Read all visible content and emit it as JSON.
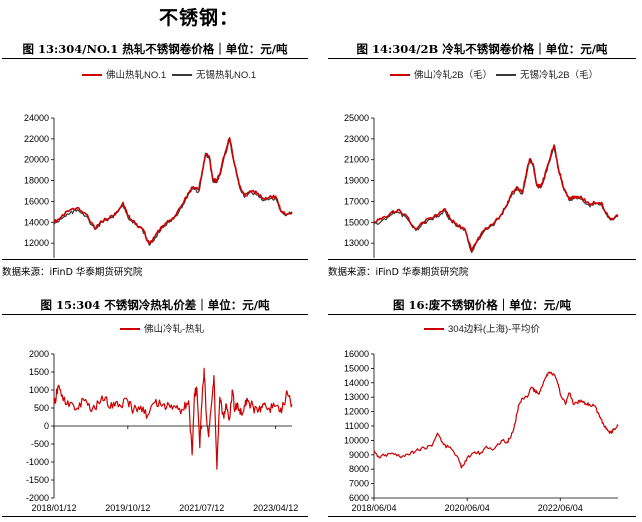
{
  "heading": "不锈钢：",
  "colors": {
    "red": "#cc0000",
    "dark": "#3a3a3a"
  },
  "panels": [
    {
      "title": "图 13:304/NO.1 热轧不锈钢卷价格｜单位：元/吨",
      "source": "数据来源：iFinD  华泰期货研究院",
      "chart_data": {
        "type": "line",
        "title": "图 13:304/NO.1 热轧不锈钢卷价格｜单位：元/吨",
        "x_ticks": [
          "2018/01/12",
          "2019/10/12",
          "2021/07/12",
          "2023/04/12"
        ],
        "x_range": [
          "2018-01-12",
          "2023-08-31"
        ],
        "ylim": [
          10000,
          24000
        ],
        "y_ticks": [
          10000,
          12000,
          14000,
          16000,
          18000,
          20000,
          22000,
          24000
        ],
        "grid": false,
        "legend": "top",
        "series": [
          {
            "name": "佛山热轧NO.1",
            "color": "#cc0000",
            "x": [
              "2018-01-12",
              "2018-03-15",
              "2018-06-01",
              "2018-08-01",
              "2018-10-15",
              "2019-01-01",
              "2019-03-01",
              "2019-05-15",
              "2019-07-01",
              "2019-09-01",
              "2019-10-12",
              "2019-12-15",
              "2020-02-15",
              "2020-04-15",
              "2020-06-01",
              "2020-08-01",
              "2020-10-01",
              "2020-12-01",
              "2021-02-01",
              "2021-03-15",
              "2021-05-01",
              "2021-06-15",
              "2021-07-12",
              "2021-08-15",
              "2021-09-15",
              "2021-10-15",
              "2021-11-15",
              "2021-12-15",
              "2022-01-15",
              "2022-03-10",
              "2022-04-15",
              "2022-06-01",
              "2022-07-15",
              "2022-09-01",
              "2022-11-01",
              "2023-01-01",
              "2023-02-15",
              "2023-04-12",
              "2023-05-20",
              "2023-07-01",
              "2023-08-31"
            ],
            "values": [
              14000,
              14500,
              15200,
              15400,
              14800,
              13400,
              14100,
              14600,
              14900,
              15900,
              14600,
              13900,
              13400,
              11900,
              12600,
              13600,
              14100,
              14700,
              15800,
              16800,
              17400,
              17100,
              18600,
              20600,
              20300,
              18200,
              17900,
              18600,
              20200,
              22100,
              19900,
              17600,
              16500,
              17000,
              16800,
              16200,
              16400,
              16500,
              15300,
              14800,
              15000
            ]
          },
          {
            "name": "无锡热轧NO.1",
            "color": "#3a3a3a",
            "x": [
              "2018-01-12",
              "2018-03-15",
              "2018-06-01",
              "2018-08-01",
              "2018-10-15",
              "2019-01-01",
              "2019-03-01",
              "2019-05-15",
              "2019-07-01",
              "2019-09-01",
              "2019-10-12",
              "2019-12-15",
              "2020-02-15",
              "2020-04-15",
              "2020-06-01",
              "2020-08-01",
              "2020-10-01",
              "2020-12-01",
              "2021-02-01",
              "2021-03-15",
              "2021-05-01",
              "2021-06-15",
              "2021-07-12",
              "2021-08-15",
              "2021-09-15",
              "2021-10-15",
              "2021-11-15",
              "2021-12-15",
              "2022-01-15",
              "2022-03-10",
              "2022-04-15",
              "2022-06-01",
              "2022-07-15",
              "2022-09-01",
              "2022-11-01",
              "2023-01-01",
              "2023-02-15",
              "2023-04-12",
              "2023-05-20",
              "2023-07-01",
              "2023-08-31"
            ],
            "values": [
              13800,
              14300,
              14900,
              15200,
              14600,
              13300,
              14000,
              14400,
              14800,
              15600,
              14500,
              13800,
              13300,
              11800,
              12500,
              13500,
              14000,
              14600,
              15700,
              16600,
              17200,
              16900,
              18400,
              20500,
              20100,
              18000,
              17800,
              18500,
              19900,
              21900,
              19800,
              17500,
              16400,
              16900,
              16600,
              16100,
              16200,
              16300,
              15200,
              14700,
              14900
            ]
          }
        ]
      }
    },
    {
      "title": "图 14:304/2B 冷轧不锈钢卷价格｜单位：元/吨",
      "source": "数据来源：iFinD  华泰期货研究院",
      "chart_data": {
        "type": "line",
        "title": "图 14:304/2B 冷轧不锈钢卷价格｜单位：元/吨",
        "x_ticks": [
          "2018/01/12",
          "2019/10/12",
          "2021/07/12",
          "2023/04/12"
        ],
        "x_range": [
          "2018-01-12",
          "2023-08-31"
        ],
        "ylim": [
          11000,
          25000
        ],
        "y_ticks": [
          11000,
          13000,
          15000,
          17000,
          19000,
          21000,
          23000,
          25000
        ],
        "grid": false,
        "legend": "top",
        "series": [
          {
            "name": "佛山冷轧2B（毛）",
            "color": "#cc0000",
            "x": [
              "2018-01-12",
              "2018-03-15",
              "2018-06-01",
              "2018-08-01",
              "2018-10-15",
              "2019-01-01",
              "2019-03-01",
              "2019-05-15",
              "2019-07-01",
              "2019-09-01",
              "2019-10-12",
              "2019-12-15",
              "2020-02-15",
              "2020-04-15",
              "2020-06-01",
              "2020-08-01",
              "2020-10-01",
              "2020-12-01",
              "2021-02-01",
              "2021-03-15",
              "2021-05-01",
              "2021-06-15",
              "2021-07-12",
              "2021-08-15",
              "2021-09-15",
              "2021-10-15",
              "2021-11-15",
              "2021-12-15",
              "2022-01-15",
              "2022-03-10",
              "2022-04-15",
              "2022-06-01",
              "2022-07-15",
              "2022-09-01",
              "2022-11-01",
              "2023-01-01",
              "2023-02-15",
              "2023-04-12",
              "2023-05-20",
              "2023-07-01",
              "2023-08-31"
            ],
            "values": [
              15000,
              15300,
              15900,
              16200,
              15600,
              14300,
              15000,
              15400,
              15700,
              16300,
              15400,
              14700,
              14400,
              12200,
              13300,
              14300,
              14800,
              15400,
              16600,
              17700,
              18400,
              17800,
              19300,
              21000,
              20600,
              18600,
              18400,
              19200,
              20500,
              22400,
              20200,
              18200,
              17200,
              17500,
              17300,
              16700,
              16900,
              16900,
              15900,
              15300,
              15600
            ]
          },
          {
            "name": "无锡冷轧2B（毛）",
            "color": "#3a3a3a",
            "x": [
              "2018-01-12",
              "2018-03-15",
              "2018-06-01",
              "2018-08-01",
              "2018-10-15",
              "2019-01-01",
              "2019-03-01",
              "2019-05-15",
              "2019-07-01",
              "2019-09-01",
              "2019-10-12",
              "2019-12-15",
              "2020-02-15",
              "2020-04-15",
              "2020-06-01",
              "2020-08-01",
              "2020-10-01",
              "2020-12-01",
              "2021-02-01",
              "2021-03-15",
              "2021-05-01",
              "2021-06-15",
              "2021-07-12",
              "2021-08-15",
              "2021-09-15",
              "2021-10-15",
              "2021-11-15",
              "2021-12-15",
              "2022-01-15",
              "2022-03-10",
              "2022-04-15",
              "2022-06-01",
              "2022-07-15",
              "2022-09-01",
              "2022-11-01",
              "2023-01-01",
              "2023-02-15",
              "2023-04-12",
              "2023-05-20",
              "2023-07-01",
              "2023-08-31"
            ],
            "values": [
              14800,
              15100,
              15700,
              16000,
              15400,
              14200,
              14900,
              15300,
              15600,
              16100,
              15300,
              14600,
              14300,
              12100,
              13200,
              14200,
              14700,
              15300,
              16500,
              17500,
              18200,
              17700,
              19100,
              20900,
              20400,
              18500,
              18300,
              19100,
              20300,
              22200,
              20100,
              18100,
              17100,
              17400,
              17200,
              16600,
              16800,
              16800,
              15800,
              15200,
              15500
            ]
          }
        ]
      }
    },
    {
      "title": "图 15:304 不锈钢冷热轧价差｜单位：元/吨",
      "source": "数据来源：iFinD  华泰期货研究院",
      "chart_data": {
        "type": "line",
        "title": "图 15:304 不锈钢冷热轧价差｜单位：元/吨",
        "x_ticks": [
          "2018/01/12",
          "2019/10/12",
          "2021/07/12",
          "2023/04/12"
        ],
        "x_range": [
          "2018-01-12",
          "2023-08-31"
        ],
        "ylim": [
          -2000,
          2000
        ],
        "y_ticks": [
          -2000,
          -1500,
          -1000,
          -500,
          0,
          500,
          1000,
          1500,
          2000
        ],
        "grid": false,
        "legend": "top",
        "series": [
          {
            "name": "佛山冷轧-热轧",
            "color": "#cc0000",
            "x": [
              "2018-01-12",
              "2018-02-15",
              "2018-04-01",
              "2018-06-01",
              "2018-08-01",
              "2018-10-01",
              "2018-12-01",
              "2019-02-01",
              "2019-04-01",
              "2019-06-01",
              "2019-08-01",
              "2019-10-12",
              "2019-12-01",
              "2020-02-01",
              "2020-04-01",
              "2020-06-01",
              "2020-08-01",
              "2020-10-01",
              "2020-12-01",
              "2021-02-01",
              "2021-03-20",
              "2021-04-20",
              "2021-05-10",
              "2021-06-01",
              "2021-06-25",
              "2021-07-12",
              "2021-08-01",
              "2021-08-20",
              "2021-09-10",
              "2021-10-01",
              "2021-10-25",
              "2021-11-20",
              "2021-12-15",
              "2022-01-15",
              "2022-02-10",
              "2022-03-10",
              "2022-04-01",
              "2022-04-25",
              "2022-05-20",
              "2022-06-20",
              "2022-07-20",
              "2022-08-20",
              "2022-10-01",
              "2022-11-15",
              "2023-01-01",
              "2023-02-15",
              "2023-04-12",
              "2023-05-20",
              "2023-06-25",
              "2023-07-20",
              "2023-08-31"
            ],
            "values": [
              600,
              1100,
              700,
              650,
              500,
              700,
              400,
              650,
              800,
              500,
              600,
              700,
              450,
              550,
              300,
              650,
              550,
              600,
              500,
              450,
              700,
              -800,
              900,
              1000,
              -600,
              600,
              1600,
              300,
              -300,
              500,
              1400,
              -1200,
              800,
              300,
              600,
              200,
              1000,
              450,
              600,
              350,
              550,
              700,
              500,
              450,
              600,
              500,
              550,
              400,
              600,
              950,
              600
            ]
          }
        ]
      }
    },
    {
      "title": "图 16:废不锈钢价格｜单位：元/吨",
      "source": "",
      "chart_data": {
        "type": "line",
        "title": "图 16:废不锈钢价格｜单位：元/吨",
        "x_ticks": [
          "2018/06/04",
          "2020/06/04",
          "2022/06/04"
        ],
        "x_range": [
          "2018-06-04",
          "2023-08-31"
        ],
        "ylim": [
          6000,
          16000
        ],
        "y_ticks": [
          6000,
          7000,
          8000,
          9000,
          10000,
          11000,
          12000,
          13000,
          14000,
          15000,
          16000
        ],
        "grid": false,
        "legend": "top",
        "series": [
          {
            "name": "304边料(上海)-平均价",
            "color": "#cc0000",
            "x": [
              "2018-06-04",
              "2018-07-15",
              "2018-09-01",
              "2018-11-01",
              "2019-01-01",
              "2019-03-01",
              "2019-05-01",
              "2019-07-01",
              "2019-09-01",
              "2019-10-15",
              "2019-12-01",
              "2020-02-01",
              "2020-04-01",
              "2020-04-20",
              "2020-06-04",
              "2020-08-01",
              "2020-09-15",
              "2020-11-01",
              "2021-01-01",
              "2021-03-01",
              "2021-04-15",
              "2021-05-15",
              "2021-06-15",
              "2021-07-15",
              "2021-08-15",
              "2021-09-20",
              "2021-10-20",
              "2021-11-20",
              "2021-12-20",
              "2022-01-20",
              "2022-02-20",
              "2022-03-20",
              "2022-04-20",
              "2022-05-20",
              "2022-06-04",
              "2022-07-15",
              "2022-08-15",
              "2022-09-15",
              "2022-10-15",
              "2022-11-15",
              "2022-12-15",
              "2023-01-20",
              "2023-03-01",
              "2023-04-10",
              "2023-05-10",
              "2023-06-10",
              "2023-07-10",
              "2023-08-01",
              "2023-08-31"
            ],
            "values": [
              9300,
              8800,
              9000,
              9100,
              8800,
              9000,
              9300,
              9500,
              9600,
              10500,
              9700,
              9400,
              8600,
              8100,
              8800,
              9200,
              9100,
              9600,
              9400,
              10000,
              9900,
              10300,
              11200,
              12500,
              12900,
              13000,
              13700,
              13400,
              13200,
              13900,
              14600,
              14700,
              14500,
              13900,
              13200,
              12500,
              13300,
              12500,
              12600,
              12800,
              12500,
              12500,
              12400,
              11600,
              11100,
              10700,
              10500,
              10800,
              11000
            ]
          }
        ]
      }
    }
  ]
}
